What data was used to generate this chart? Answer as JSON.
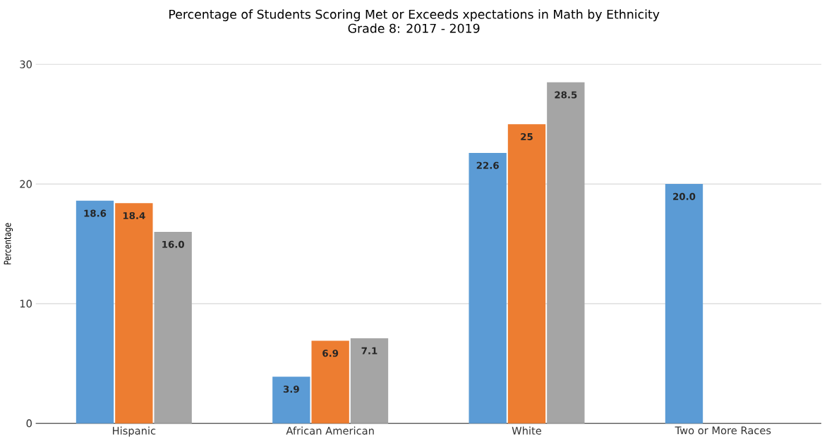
{
  "chart_data": {
    "type": "bar",
    "title": "Percentage of Students Scoring Met or Exceeds xpectations in Math by Ethnicity",
    "subtitle": "Grade 8: 2017 - 2019",
    "ylabel": "Percentage",
    "categories": [
      "Hispanic",
      "African American",
      "White",
      "Two or More Races"
    ],
    "series": [
      {
        "color": "#5b9bd5",
        "values": [
          18.6,
          3.9,
          22.6,
          20.0
        ],
        "value_labels": [
          "18.6",
          "3.9",
          "22.6",
          "20.0"
        ]
      },
      {
        "color": "#ed7d31",
        "values": [
          18.4,
          6.9,
          25,
          null
        ],
        "value_labels": [
          "18.4",
          "6.9",
          "25",
          null
        ]
      },
      {
        "color": "#a5a5a5",
        "values": [
          16.0,
          7.1,
          28.5,
          null
        ],
        "value_labels": [
          "16.0",
          "7.1",
          "28.5",
          null
        ]
      }
    ],
    "ylim": [
      0,
      30
    ],
    "yticks": [
      0,
      10,
      20,
      30
    ],
    "grid": "y"
  }
}
